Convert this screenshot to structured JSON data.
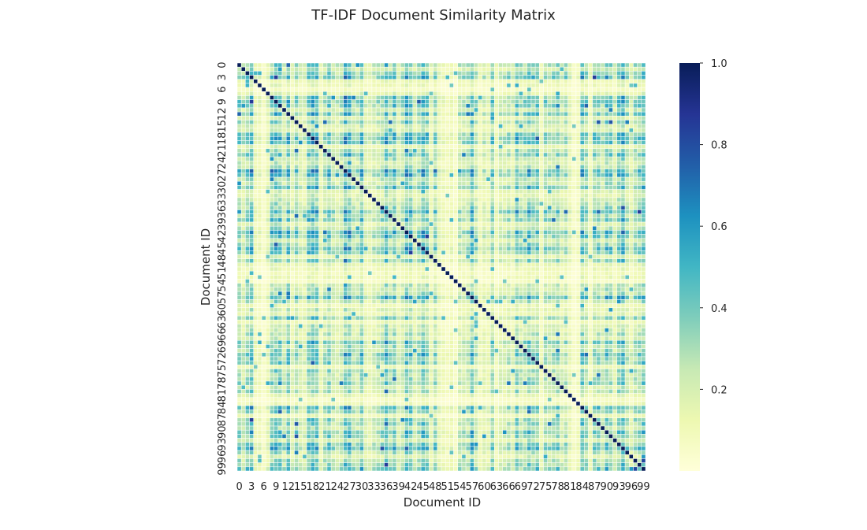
{
  "chart_data": {
    "type": "heatmap",
    "title": "TF-IDF Document Similarity Matrix",
    "xlabel": "Document ID",
    "ylabel": "Document ID",
    "n_documents": 100,
    "x_tick_labels": [
      "0",
      "3",
      "6",
      "9",
      "12",
      "15",
      "18",
      "21",
      "24",
      "27",
      "30",
      "33",
      "36",
      "39",
      "42",
      "45",
      "48",
      "51",
      "54",
      "57",
      "60",
      "63",
      "66",
      "69",
      "72",
      "75",
      "78",
      "81",
      "84",
      "87",
      "90",
      "93",
      "96",
      "99"
    ],
    "y_tick_labels": [
      "0",
      "3",
      "6",
      "9",
      "12",
      "15",
      "18",
      "21",
      "24",
      "27",
      "30",
      "33",
      "36",
      "39",
      "42",
      "45",
      "48",
      "51",
      "54",
      "57",
      "60",
      "63",
      "66",
      "69",
      "72",
      "75",
      "78",
      "81",
      "84",
      "87",
      "90",
      "93",
      "96",
      "99"
    ],
    "tick_step": 3,
    "colorbar": {
      "vmin": 0.0,
      "vmax": 1.0,
      "ticks": [
        "0.2",
        "0.4",
        "0.6",
        "0.8",
        "1.0"
      ],
      "tick_values": [
        0.2,
        0.4,
        0.6,
        0.8,
        1.0
      ],
      "colormap": "YlGnBu"
    },
    "diagonal_value": 1.0,
    "cells": "approximate off-diagonal similarities in the range 0.0–0.6; diagonal = 1.0",
    "grid": true,
    "cell_line_color": "#ffffff"
  }
}
